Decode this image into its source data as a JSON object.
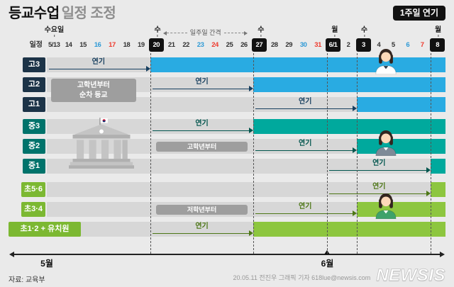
{
  "meta": {
    "title_bold": "등교수업",
    "title_rest": "일정 조정",
    "badge": "1주일 연기",
    "source": "자료: 교육부",
    "credit": "20.05.11 전진우 그래픽 기자 618lue@newsis.com",
    "logo": "NEWSIS"
  },
  "colors": {
    "high_bar": "#29abe2",
    "middle_bar": "#00a99d",
    "elem_bar": "#8dc63f",
    "highlight_date_bg": "#111111",
    "saturday": "#2f9ad6",
    "sunday": "#ee3b2e",
    "note_box": "#9e9e9e"
  },
  "icons": [
    "school-building-icon",
    "student-avatar-icon"
  ],
  "chart_data": {
    "type": "gantt-timeline",
    "axis_label": "일정",
    "dates": [
      "5/13",
      "14",
      "15",
      "16",
      "17",
      "18",
      "19",
      "20",
      "21",
      "22",
      "23",
      "24",
      "25",
      "26",
      "27",
      "28",
      "29",
      "30",
      "31",
      "6/1",
      "2",
      "3",
      "4",
      "5",
      "6",
      "7",
      "8"
    ],
    "highlight_cols": [
      7,
      14,
      19,
      21,
      26
    ],
    "saturday_cols": [
      3,
      10,
      17,
      24
    ],
    "sunday_cols": [
      4,
      11,
      18,
      25
    ],
    "day_labels": [
      {
        "text": "수요일",
        "col": 0
      },
      {
        "text": "수",
        "col": 7
      },
      {
        "text": "수",
        "col": 14
      },
      {
        "text": "월",
        "col": 19
      },
      {
        "text": "수",
        "col": 21
      },
      {
        "text": "월",
        "col": 26
      }
    ],
    "interval_note": {
      "text": "일주일 간격",
      "from": 7,
      "to": 14
    },
    "delay_label": "연기",
    "rows": [
      {
        "label": "고3",
        "group": "high",
        "delay_from": 0,
        "delay_to": 7,
        "bar_from": 7
      },
      {
        "label": "고2",
        "group": "high",
        "delay_from": 7,
        "delay_to": 14,
        "bar_from": 14
      },
      {
        "label": "고1",
        "group": "high",
        "delay_from": 14,
        "delay_to": 21,
        "bar_from": 21
      },
      {
        "label": "중3",
        "group": "middle",
        "delay_from": 7,
        "delay_to": 14,
        "bar_from": 14
      },
      {
        "label": "중2",
        "group": "middle",
        "delay_from": 14,
        "delay_to": 21,
        "bar_from": 21,
        "note": {
          "text": "고학년부터",
          "from": 7,
          "to": 14
        }
      },
      {
        "label": "중1",
        "group": "middle",
        "delay_from": 19,
        "delay_to": 26,
        "bar_from": 26
      },
      {
        "label": "초5·6",
        "group": "elem",
        "delay_from": 19,
        "delay_to": 26,
        "bar_from": 26
      },
      {
        "label": "초3·4",
        "group": "elem",
        "delay_from": 14,
        "delay_to": 21,
        "bar_from": 21,
        "note": {
          "text": "저학년부터",
          "from": 7,
          "to": 14
        }
      },
      {
        "label": "초1·2 + 유치원",
        "group": "elem",
        "delay_from": 7,
        "delay_to": 14,
        "bar_from": 14,
        "wide_label": true
      }
    ],
    "side_note": {
      "text": "고학년부터\n순차 등교",
      "row": 1,
      "from": 0,
      "to": 7
    },
    "months": [
      {
        "text": "5월",
        "col": 0,
        "tick": false
      },
      {
        "text": "6월",
        "col": 19,
        "tick": true
      }
    ],
    "figures": [
      {
        "row": 0,
        "shirt": "#ffffff",
        "hair": "#33251f",
        "skin": "#fcd8b8",
        "collar": "#2b3a4a"
      },
      {
        "row": 4,
        "shirt": "#7d8a97",
        "hair": "#33251f",
        "skin": "#fcd8b8",
        "collar": "#ffffff"
      },
      {
        "row": 7,
        "shirt": "#3fa26a",
        "hair": "#33251f",
        "skin": "#fcd8b8",
        "collar": "#ffffff"
      }
    ],
    "building": {
      "rows": [
        3,
        5
      ]
    }
  }
}
